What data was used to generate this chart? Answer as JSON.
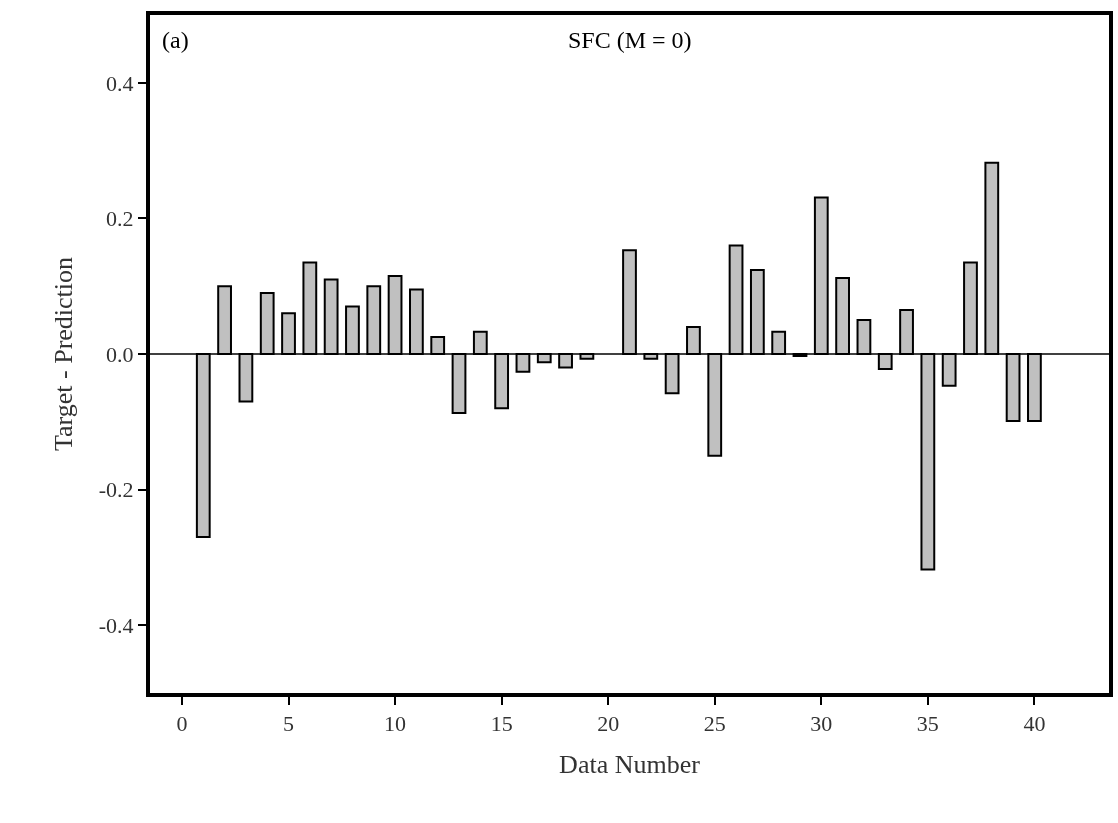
{
  "chart_data": {
    "type": "bar",
    "title": "SFC (M = 0)",
    "xlabel": "Data Number",
    "ylabel": "Target - Prediction",
    "annotations": [
      "(a)"
    ],
    "x": [
      1,
      2,
      3,
      4,
      5,
      6,
      7,
      8,
      9,
      10,
      11,
      12,
      13,
      14,
      15,
      16,
      17,
      18,
      19,
      20,
      21,
      22,
      23,
      24,
      25,
      26,
      27,
      28,
      29,
      30,
      31,
      32,
      33,
      34,
      35,
      36,
      37,
      38,
      39,
      40
    ],
    "values": [
      -0.27,
      0.1,
      -0.07,
      0.09,
      0.06,
      0.135,
      0.11,
      0.07,
      0.1,
      0.115,
      0.095,
      0.025,
      -0.087,
      0.033,
      -0.08,
      -0.026,
      -0.012,
      -0.02,
      -0.007,
      null,
      0.153,
      -0.007,
      -0.058,
      0.04,
      -0.15,
      0.16,
      0.124,
      0.033,
      -0.003,
      0.231,
      0.112,
      0.05,
      -0.022,
      0.065,
      -0.318,
      -0.047,
      0.135,
      0.282,
      -0.099,
      -0.099
    ],
    "color": "#c0c0c0",
    "xlim": [
      -1.5,
      43.5
    ],
    "xticks": [
      0,
      5,
      10,
      15,
      20,
      25,
      30,
      35,
      40
    ],
    "ylim": [
      -0.5,
      0.5
    ],
    "yticks": [
      -0.4,
      -0.2,
      {
        "value": 0,
        "label": "0.0"
      },
      0.2,
      0.4
    ],
    "ref_lines": [
      {
        "axis": "y",
        "value": 0,
        "color": "#000000"
      }
    ]
  }
}
